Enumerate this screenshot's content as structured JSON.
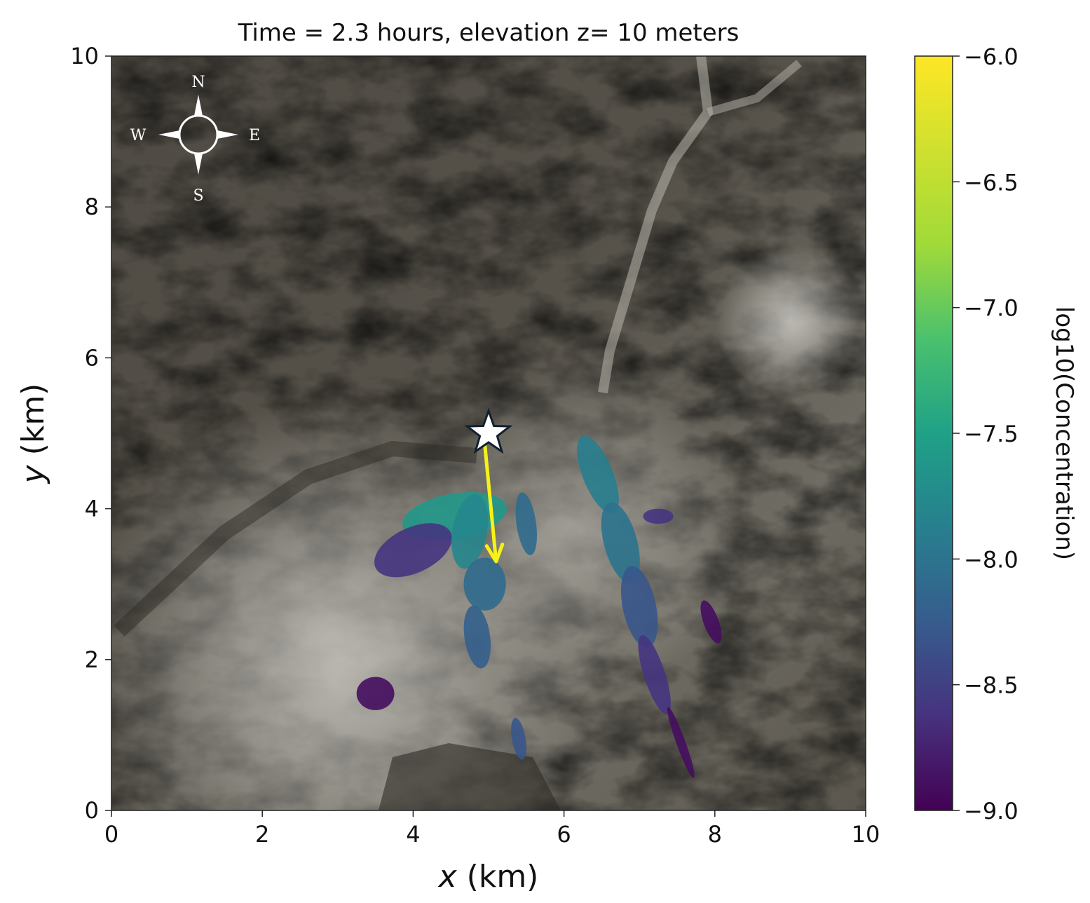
{
  "chart_data": {
    "type": "heatmap",
    "title": "Time = 2.3 hours, elevation z= 10 meters",
    "xlabel": "x (km)",
    "ylabel": "y (km)",
    "xlim": [
      0,
      10
    ],
    "ylim": [
      0,
      10
    ],
    "x_ticks": [
      "0",
      "2",
      "4",
      "6",
      "8",
      "10"
    ],
    "y_ticks": [
      "0",
      "2",
      "4",
      "6",
      "8",
      "10"
    ],
    "grid": false,
    "background": "satellite terrain imagery",
    "colorbar": {
      "label": "log10(Concentration)",
      "colormap": "viridis",
      "range": [
        -9.0,
        -6.0
      ],
      "ticks": [
        "−6.0",
        "−6.5",
        "−7.0",
        "−7.5",
        "−8.0",
        "−8.5",
        "−9.0"
      ],
      "tick_values": [
        -6.0,
        -6.5,
        -7.0,
        -7.5,
        -8.0,
        -8.5,
        -9.0
      ]
    },
    "source_marker": {
      "shape": "star",
      "x": 5.0,
      "y": 5.0,
      "color": "#ffffff"
    },
    "wind_arrow": {
      "from": [
        4.95,
        4.85
      ],
      "to": [
        5.1,
        3.3
      ],
      "color": "#f5f219"
    },
    "compass": {
      "n": "N",
      "s": "S",
      "e": "E",
      "w": "W"
    },
    "plume_patches": [
      {
        "cx": 4.55,
        "cy": 3.9,
        "rx": 0.7,
        "ry": 0.3,
        "rot": -10,
        "level": -7.6
      },
      {
        "cx": 4.0,
        "cy": 3.45,
        "rx": 0.55,
        "ry": 0.3,
        "rot": -25,
        "level": -8.6
      },
      {
        "cx": 4.75,
        "cy": 3.7,
        "rx": 0.23,
        "ry": 0.5,
        "rot": 10,
        "level": -7.8
      },
      {
        "cx": 4.95,
        "cy": 3.0,
        "rx": 0.28,
        "ry": 0.35,
        "rot": 0,
        "level": -8.1
      },
      {
        "cx": 4.85,
        "cy": 2.3,
        "rx": 0.17,
        "ry": 0.42,
        "rot": -8,
        "level": -8.2
      },
      {
        "cx": 5.5,
        "cy": 3.8,
        "rx": 0.13,
        "ry": 0.42,
        "rot": -8,
        "level": -8.1
      },
      {
        "cx": 5.4,
        "cy": 0.95,
        "rx": 0.09,
        "ry": 0.28,
        "rot": -10,
        "level": -8.3
      },
      {
        "cx": 6.45,
        "cy": 4.45,
        "rx": 0.2,
        "ry": 0.55,
        "rot": -22,
        "level": -7.9
      },
      {
        "cx": 6.75,
        "cy": 3.55,
        "rx": 0.22,
        "ry": 0.55,
        "rot": -15,
        "level": -8.0
      },
      {
        "cx": 7.0,
        "cy": 2.7,
        "rx": 0.22,
        "ry": 0.55,
        "rot": -12,
        "level": -8.3
      },
      {
        "cx": 7.2,
        "cy": 1.8,
        "rx": 0.14,
        "ry": 0.55,
        "rot": -18,
        "level": -8.6
      },
      {
        "cx": 7.55,
        "cy": 0.9,
        "rx": 0.06,
        "ry": 0.5,
        "rot": -20,
        "level": -8.9
      },
      {
        "cx": 7.25,
        "cy": 3.9,
        "rx": 0.2,
        "ry": 0.1,
        "rot": 0,
        "level": -8.6
      },
      {
        "cx": 3.5,
        "cy": 1.55,
        "rx": 0.25,
        "ry": 0.22,
        "rot": 0,
        "level": -8.9
      },
      {
        "cx": 7.95,
        "cy": 2.5,
        "rx": 0.1,
        "ry": 0.3,
        "rot": -20,
        "level": -8.9
      }
    ]
  }
}
